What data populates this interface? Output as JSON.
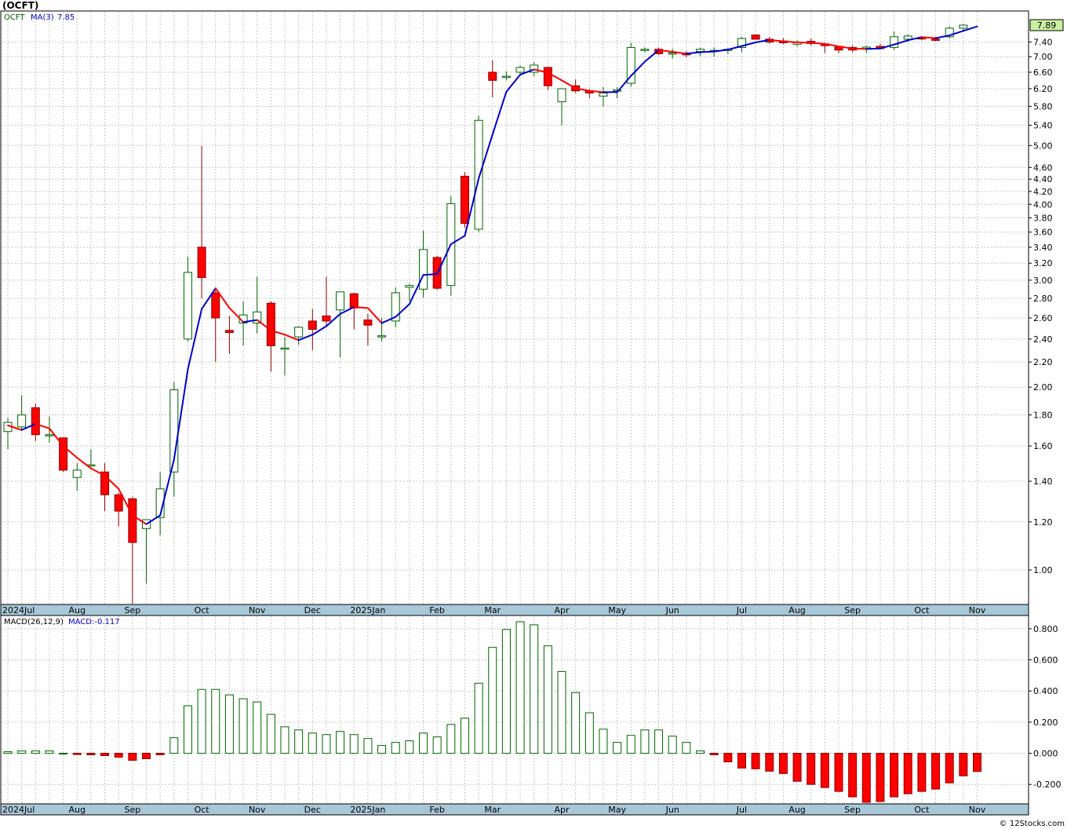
{
  "chart_title": "(OCFT)",
  "credit": "© 12Stocks.com",
  "colors": {
    "up": "#006400",
    "down": "#ff0000",
    "ma_up": "#0000cc",
    "ma_down": "#ff0000",
    "grid": "#c8c8c8",
    "axis_band": "#a8c8d8",
    "last_price_box": "#c8f0a0"
  },
  "chart_data": [
    {
      "type": "candlestick",
      "title": "(OCFT)",
      "scale": "log",
      "ylim": [
        0.88,
        8.3
      ],
      "y_ticks": [
        "1.00",
        "1.20",
        "1.40",
        "1.60",
        "1.80",
        "2.00",
        "2.20",
        "2.40",
        "2.60",
        "2.80",
        "3.00",
        "3.20",
        "3.40",
        "3.60",
        "3.80",
        "4.00",
        "4.20",
        "4.40",
        "4.60",
        "5.00",
        "5.40",
        "5.80",
        "6.20",
        "6.60",
        "7.00",
        "7.40"
      ],
      "last_price_label": "7.89",
      "legend": {
        "symbol": "OCFT",
        "ma_label": "MA(3)",
        "ma_value": "7.85"
      },
      "x_labels": [
        "2024Jul",
        "Aug",
        "Sep",
        "Oct",
        "Nov",
        "Dec",
        "2025Jan",
        "Feb",
        "Mar",
        "Apr",
        "May",
        "Jun",
        "Jul",
        "Aug",
        "Sep",
        "Oct",
        "Nov"
      ],
      "x_label_week_index": [
        0,
        5,
        9,
        14,
        18,
        22,
        26,
        31,
        35,
        40,
        44,
        48,
        53,
        57,
        61,
        66,
        70
      ],
      "candles": [
        {
          "o": 1.69,
          "h": 1.78,
          "l": 1.58,
          "c": 1.75
        },
        {
          "o": 1.72,
          "h": 1.94,
          "l": 1.7,
          "c": 1.8
        },
        {
          "o": 1.85,
          "h": 1.88,
          "l": 1.63,
          "c": 1.67
        },
        {
          "o": 1.67,
          "h": 1.79,
          "l": 1.62,
          "c": 1.67
        },
        {
          "o": 1.65,
          "h": 1.65,
          "l": 1.45,
          "c": 1.46
        },
        {
          "o": 1.42,
          "h": 1.5,
          "l": 1.35,
          "c": 1.46
        },
        {
          "o": 1.49,
          "h": 1.58,
          "l": 1.48,
          "c": 1.49
        },
        {
          "o": 1.45,
          "h": 1.5,
          "l": 1.25,
          "c": 1.33
        },
        {
          "o": 1.33,
          "h": 1.34,
          "l": 1.18,
          "c": 1.25
        },
        {
          "o": 1.31,
          "h": 1.32,
          "l": 0.88,
          "c": 1.11
        },
        {
          "o": 1.17,
          "h": 1.21,
          "l": 0.95,
          "c": 1.21
        },
        {
          "o": 1.22,
          "h": 1.45,
          "l": 1.14,
          "c": 1.36
        },
        {
          "o": 1.45,
          "h": 2.04,
          "l": 1.32,
          "c": 1.98
        },
        {
          "o": 2.4,
          "h": 3.28,
          "l": 2.38,
          "c": 3.09
        },
        {
          "o": 3.4,
          "h": 4.99,
          "l": 2.8,
          "c": 3.03
        },
        {
          "o": 2.86,
          "h": 2.89,
          "l": 2.2,
          "c": 2.6
        },
        {
          "o": 2.48,
          "h": 2.62,
          "l": 2.27,
          "c": 2.46
        },
        {
          "o": 2.55,
          "h": 2.77,
          "l": 2.34,
          "c": 2.63
        },
        {
          "o": 2.55,
          "h": 3.04,
          "l": 2.45,
          "c": 2.66
        },
        {
          "o": 2.75,
          "h": 2.77,
          "l": 2.12,
          "c": 2.34
        },
        {
          "o": 2.31,
          "h": 2.42,
          "l": 2.09,
          "c": 2.32
        },
        {
          "o": 2.42,
          "h": 2.52,
          "l": 2.35,
          "c": 2.51
        },
        {
          "o": 2.57,
          "h": 2.69,
          "l": 2.3,
          "c": 2.49
        },
        {
          "o": 2.62,
          "h": 3.04,
          "l": 2.51,
          "c": 2.57
        },
        {
          "o": 2.68,
          "h": 2.87,
          "l": 2.24,
          "c": 2.87
        },
        {
          "o": 2.85,
          "h": 2.86,
          "l": 2.49,
          "c": 2.7
        },
        {
          "o": 2.58,
          "h": 2.64,
          "l": 2.34,
          "c": 2.53
        },
        {
          "o": 2.42,
          "h": 2.6,
          "l": 2.38,
          "c": 2.43
        },
        {
          "o": 2.57,
          "h": 2.92,
          "l": 2.51,
          "c": 2.86
        },
        {
          "o": 2.92,
          "h": 2.96,
          "l": 2.77,
          "c": 2.94
        },
        {
          "o": 2.9,
          "h": 3.62,
          "l": 2.81,
          "c": 3.37
        },
        {
          "o": 3.27,
          "h": 3.29,
          "l": 2.89,
          "c": 2.91
        },
        {
          "o": 2.94,
          "h": 4.13,
          "l": 2.83,
          "c": 4.01
        },
        {
          "o": 4.45,
          "h": 4.52,
          "l": 3.66,
          "c": 3.72
        },
        {
          "o": 3.64,
          "h": 5.6,
          "l": 3.6,
          "c": 5.5
        },
        {
          "o": 6.6,
          "h": 6.9,
          "l": 6.0,
          "c": 6.4
        },
        {
          "o": 6.5,
          "h": 6.62,
          "l": 6.4,
          "c": 6.5
        },
        {
          "o": 6.6,
          "h": 6.78,
          "l": 6.5,
          "c": 6.72
        },
        {
          "o": 6.6,
          "h": 6.86,
          "l": 6.5,
          "c": 6.78
        },
        {
          "o": 6.72,
          "h": 6.74,
          "l": 6.17,
          "c": 6.27
        },
        {
          "o": 5.9,
          "h": 6.2,
          "l": 5.4,
          "c": 6.2
        },
        {
          "o": 6.27,
          "h": 6.42,
          "l": 6.1,
          "c": 6.15
        },
        {
          "o": 6.15,
          "h": 6.19,
          "l": 5.98,
          "c": 6.1
        },
        {
          "o": 6.03,
          "h": 6.24,
          "l": 5.8,
          "c": 6.1
        },
        {
          "o": 6.17,
          "h": 6.24,
          "l": 5.98,
          "c": 6.17
        },
        {
          "o": 6.33,
          "h": 7.38,
          "l": 6.25,
          "c": 7.25
        },
        {
          "o": 7.2,
          "h": 7.25,
          "l": 7.12,
          "c": 7.2
        },
        {
          "o": 7.2,
          "h": 7.24,
          "l": 7.05,
          "c": 7.08
        },
        {
          "o": 7.1,
          "h": 7.22,
          "l": 6.95,
          "c": 7.1
        },
        {
          "o": 7.1,
          "h": 7.15,
          "l": 6.98,
          "c": 7.05
        },
        {
          "o": 7.14,
          "h": 7.24,
          "l": 7.02,
          "c": 7.2
        },
        {
          "o": 7.15,
          "h": 7.25,
          "l": 7.0,
          "c": 7.17
        },
        {
          "o": 7.18,
          "h": 7.23,
          "l": 7.07,
          "c": 7.2
        },
        {
          "o": 7.25,
          "h": 7.55,
          "l": 7.12,
          "c": 7.5
        },
        {
          "o": 7.6,
          "h": 7.62,
          "l": 7.48,
          "c": 7.48
        },
        {
          "o": 7.48,
          "h": 7.55,
          "l": 7.36,
          "c": 7.4
        },
        {
          "o": 7.43,
          "h": 7.51,
          "l": 7.34,
          "c": 7.38
        },
        {
          "o": 7.34,
          "h": 7.45,
          "l": 7.28,
          "c": 7.4
        },
        {
          "o": 7.42,
          "h": 7.5,
          "l": 7.3,
          "c": 7.36
        },
        {
          "o": 7.35,
          "h": 7.38,
          "l": 7.1,
          "c": 7.3
        },
        {
          "o": 7.28,
          "h": 7.3,
          "l": 7.1,
          "c": 7.18
        },
        {
          "o": 7.25,
          "h": 7.31,
          "l": 7.12,
          "c": 7.18
        },
        {
          "o": 7.2,
          "h": 7.3,
          "l": 7.1,
          "c": 7.26
        },
        {
          "o": 7.28,
          "h": 7.35,
          "l": 7.2,
          "c": 7.22
        },
        {
          "o": 7.25,
          "h": 7.7,
          "l": 7.18,
          "c": 7.55
        },
        {
          "o": 7.48,
          "h": 7.62,
          "l": 7.4,
          "c": 7.57
        },
        {
          "o": 7.52,
          "h": 7.56,
          "l": 7.45,
          "c": 7.5
        },
        {
          "o": 7.48,
          "h": 7.55,
          "l": 7.42,
          "c": 7.47
        },
        {
          "o": 7.55,
          "h": 7.85,
          "l": 7.5,
          "c": 7.8
        },
        {
          "o": 7.8,
          "h": 7.92,
          "l": 7.7,
          "c": 7.89
        }
      ],
      "ma3": [
        1.73,
        1.7,
        1.74,
        1.71,
        1.6,
        1.53,
        1.47,
        1.43,
        1.36,
        1.23,
        1.19,
        1.23,
        1.52,
        2.14,
        2.69,
        2.91,
        2.7,
        2.56,
        2.58,
        2.48,
        2.44,
        2.39,
        2.44,
        2.52,
        2.64,
        2.71,
        2.7,
        2.55,
        2.61,
        2.74,
        3.06,
        3.07,
        3.44,
        3.55,
        4.41,
        5.21,
        6.13,
        6.54,
        6.67,
        6.59,
        6.4,
        6.21,
        6.15,
        6.12,
        6.12,
        6.51,
        6.87,
        7.18,
        7.13,
        7.08,
        7.12,
        7.14,
        7.19,
        7.29,
        7.39,
        7.46,
        7.42,
        7.39,
        7.38,
        7.35,
        7.28,
        7.22,
        7.21,
        7.22,
        7.33,
        7.45,
        7.54,
        7.51,
        7.59,
        7.72
      ],
      "x_extra_ma_point": 7.85
    },
    {
      "type": "bar",
      "title": "MACD(26,12,9)",
      "legend": {
        "label": "MACD(26,12,9)",
        "value_label": "MACD:-0.117"
      },
      "ylim": [
        -0.32,
        0.88
      ],
      "y_ticks": [
        "-0.200",
        "0.000",
        "0.200",
        "0.400",
        "0.600",
        "0.800"
      ],
      "values": [
        0.01,
        0.015,
        0.015,
        0.015,
        0.0,
        -0.008,
        -0.01,
        -0.015,
        -0.025,
        -0.045,
        -0.035,
        -0.01,
        0.1,
        0.305,
        0.41,
        0.41,
        0.375,
        0.35,
        0.33,
        0.25,
        0.17,
        0.15,
        0.13,
        0.12,
        0.14,
        0.12,
        0.095,
        0.05,
        0.07,
        0.08,
        0.13,
        0.105,
        0.185,
        0.225,
        0.45,
        0.68,
        0.795,
        0.845,
        0.825,
        0.69,
        0.525,
        0.39,
        0.26,
        0.155,
        0.07,
        0.115,
        0.15,
        0.15,
        0.11,
        0.07,
        0.015,
        -0.01,
        -0.055,
        -0.095,
        -0.1,
        -0.115,
        -0.13,
        -0.18,
        -0.2,
        -0.22,
        -0.245,
        -0.28,
        -0.315,
        -0.31,
        -0.28,
        -0.26,
        -0.245,
        -0.23,
        -0.19,
        -0.145,
        -0.117
      ]
    }
  ]
}
